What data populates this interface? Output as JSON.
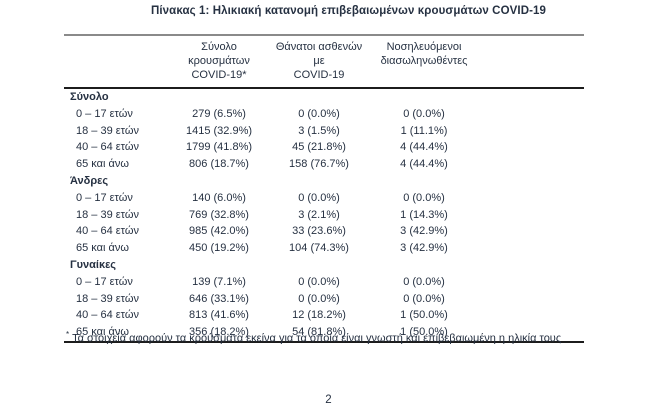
{
  "page": {
    "title": "Πίνακας 1: Ηλικιακή κατανομή επιβεβαιωμένων κρουσμάτων COVID-19",
    "footnote_marker": "*",
    "footnote": "Τα στοιχεία αφορούν τα κρούσματα εκείνα για τα οποία είναι γνωστή και επιβεβαιωμένη η ηλικία τους",
    "page_number": "2"
  },
  "colors": {
    "text": "#263142",
    "rule_gray": "#8a8a8a",
    "rule_dark": "#1c1c1c",
    "background": "#ffffff"
  },
  "table": {
    "columns": [
      {
        "lines": [
          "Σύνολο κρουσμάτων",
          "COVID-19*"
        ]
      },
      {
        "lines": [
          "Θάνατοι ασθενών με",
          "COVID-19"
        ]
      },
      {
        "lines": [
          "Νοσηλευόμενοι",
          "διασωληνωθέντες"
        ]
      }
    ],
    "groups": [
      {
        "label": "Σύνολο",
        "rows": [
          {
            "age": "0 – 17 ετών",
            "cases": "279 (6.5%)",
            "deaths": "0 (0.0%)",
            "intubated": "0 (0.0%)"
          },
          {
            "age": "18 – 39 ετών",
            "cases": "1415 (32.9%)",
            "deaths": "3 (1.5%)",
            "intubated": "1 (11.1%)"
          },
          {
            "age": "40 – 64 ετών",
            "cases": "1799 (41.8%)",
            "deaths": "45 (21.8%)",
            "intubated": "4 (44.4%)"
          },
          {
            "age": "65 και άνω",
            "cases": "806 (18.7%)",
            "deaths": "158 (76.7%)",
            "intubated": "4 (44.4%)"
          }
        ]
      },
      {
        "label": "Άνδρες",
        "rows": [
          {
            "age": "0 – 17 ετών",
            "cases": "140 (6.0%)",
            "deaths": "0 (0.0%)",
            "intubated": "0 (0.0%)"
          },
          {
            "age": "18 – 39 ετών",
            "cases": "769 (32.8%)",
            "deaths": "3 (2.1%)",
            "intubated": "1 (14.3%)"
          },
          {
            "age": "40 – 64 ετών",
            "cases": "985 (42.0%)",
            "deaths": "33 (23.6%)",
            "intubated": "3 (42.9%)"
          },
          {
            "age": "65 και άνω",
            "cases": "450 (19.2%)",
            "deaths": "104 (74.3%)",
            "intubated": "3 (42.9%)"
          }
        ]
      },
      {
        "label": "Γυναίκες",
        "rows": [
          {
            "age": "0 – 17 ετών",
            "cases": "139 (7.1%)",
            "deaths": "0 (0.0%)",
            "intubated": "0 (0.0%)"
          },
          {
            "age": "18 – 39 ετών",
            "cases": "646 (33.1%)",
            "deaths": "0 (0.0%)",
            "intubated": "0 (0.0%)"
          },
          {
            "age": "40 – 64 ετών",
            "cases": "813 (41.6%)",
            "deaths": "12 (18.2%)",
            "intubated": "1 (50.0%)"
          },
          {
            "age": "65 και άνω",
            "cases": "356 (18.2%)",
            "deaths": "54 (81.8%)",
            "intubated": "1 (50.0%)"
          }
        ]
      }
    ]
  }
}
